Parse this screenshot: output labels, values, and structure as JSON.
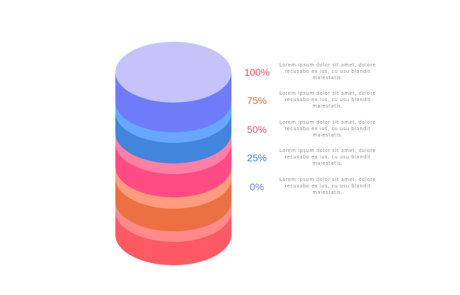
{
  "levels": [
    {
      "label": "100%",
      "text": "Lorem ipsum dolor sit amet, dolore recusabo ex ius, cu usu blandit maiestatis.",
      "color": "#F2434E"
    },
    {
      "label": "75%",
      "text": "Lorem ipsum dolor sit amet, dolore recusabo ex ius, cu usu blandit maiestatis.",
      "color": "#E26C37"
    },
    {
      "label": "50%",
      "text": "Lorem ipsum dolor sit amet, dolore recusabo ex ius, cu usu blandit maiestatis.",
      "color": "#F2457E"
    },
    {
      "label": "25%",
      "text": "Lorem ipsum dolor sit amet, dolore recusabo ex ius, cu usu blandit maiestatis.",
      "color": "#3D83D8"
    },
    {
      "label": "0%",
      "text": "Lorem ipsum dolor sit amet, dolore recusabo ex ius, cu usu blandit maiestatis.",
      "color": "#6F79F2"
    }
  ],
  "stack_layers": [
    {
      "side": "#FF5964",
      "rim": "#FF8A8A"
    },
    {
      "side": "#EC7042",
      "rim": "#FF9C7D"
    },
    {
      "side": "#FF4B85",
      "rim": "#FF80A5"
    },
    {
      "side": "#4185DD",
      "rim": "#66A8FF"
    },
    {
      "side": "#6E7CFA",
      "top": "#C6C3FA"
    }
  ]
}
